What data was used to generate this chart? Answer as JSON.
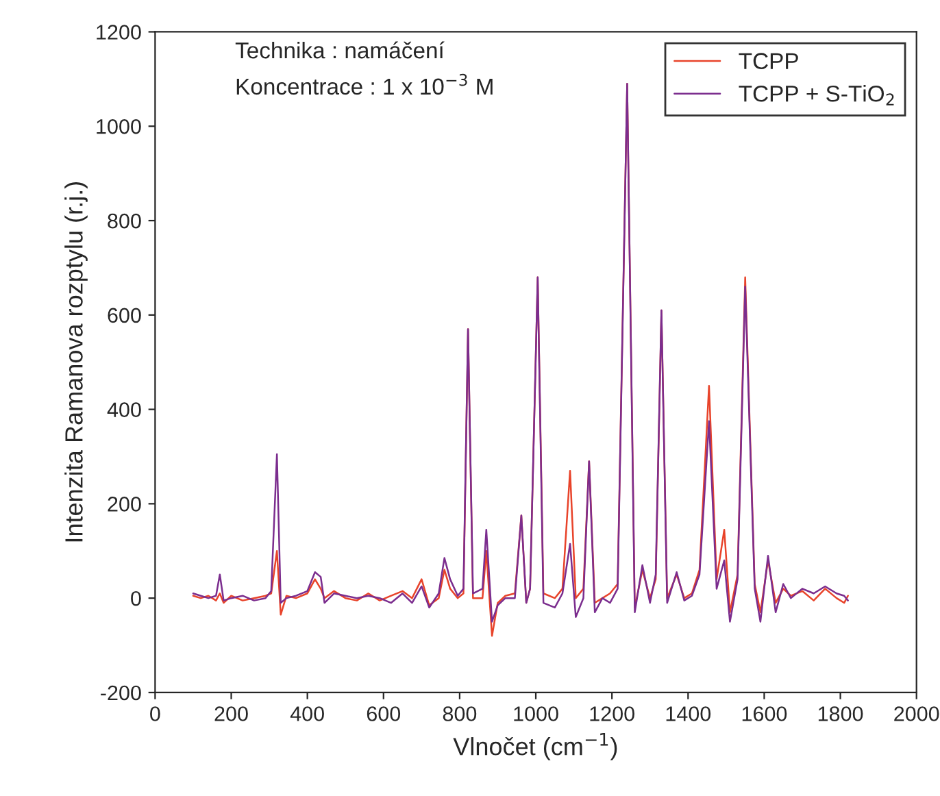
{
  "chart_data": {
    "type": "line",
    "xlabel": "Vlnočet (cm$^{−1}$)",
    "ylabel": "Intenzita Ramanova rozptylu (r.j.)",
    "annotations": [
      "Technika : namáčení",
      "Koncentrace : 1 x 10$^{−3}$ M"
    ],
    "x": [
      100,
      120,
      140,
      160,
      170,
      180,
      200,
      230,
      260,
      290,
      305,
      320,
      330,
      345,
      370,
      400,
      420,
      435,
      445,
      470,
      500,
      530,
      560,
      590,
      620,
      650,
      675,
      700,
      720,
      745,
      760,
      775,
      795,
      810,
      822,
      835,
      860,
      870,
      885,
      900,
      920,
      945,
      962,
      975,
      985,
      1005,
      1020,
      1050,
      1070,
      1090,
      1105,
      1125,
      1140,
      1155,
      1175,
      1195,
      1215,
      1240,
      1260,
      1280,
      1300,
      1315,
      1330,
      1345,
      1370,
      1390,
      1410,
      1430,
      1455,
      1475,
      1495,
      1510,
      1530,
      1550,
      1575,
      1590,
      1610,
      1630,
      1650,
      1670,
      1700,
      1730,
      1760,
      1790,
      1810,
      1820
    ],
    "series": [
      {
        "name": "TCPP",
        "color": "#e8432a",
        "values": [
          5,
          0,
          5,
          -5,
          10,
          -10,
          5,
          -5,
          0,
          5,
          10,
          100,
          -35,
          5,
          0,
          10,
          40,
          20,
          0,
          15,
          0,
          -5,
          10,
          -5,
          5,
          15,
          0,
          40,
          -15,
          0,
          60,
          20,
          0,
          10,
          570,
          0,
          0,
          100,
          -80,
          -10,
          5,
          10,
          175,
          -10,
          20,
          680,
          10,
          0,
          20,
          270,
          0,
          20,
          290,
          -10,
          0,
          10,
          30,
          1090,
          -20,
          60,
          0,
          40,
          610,
          0,
          50,
          0,
          10,
          60,
          450,
          40,
          145,
          -30,
          50,
          680,
          30,
          -30,
          80,
          -10,
          20,
          5,
          15,
          -5,
          20,
          0,
          -10,
          5
        ]
      },
      {
        "name": "TCPP + S-TiO$_{2}$",
        "color": "#7b2d8e",
        "values": [
          10,
          5,
          0,
          5,
          50,
          -5,
          0,
          5,
          -5,
          0,
          15,
          305,
          -10,
          0,
          5,
          15,
          55,
          45,
          -10,
          10,
          5,
          0,
          5,
          0,
          -10,
          10,
          -10,
          25,
          -20,
          10,
          85,
          40,
          5,
          20,
          570,
          10,
          20,
          145,
          -50,
          -15,
          0,
          0,
          175,
          -10,
          20,
          680,
          -10,
          -20,
          10,
          115,
          -40,
          0,
          290,
          -30,
          0,
          -10,
          20,
          1090,
          -30,
          70,
          -10,
          50,
          610,
          -10,
          55,
          -5,
          5,
          50,
          375,
          20,
          80,
          -50,
          40,
          660,
          20,
          -50,
          90,
          -30,
          30,
          0,
          20,
          10,
          25,
          10,
          5,
          -5
        ]
      }
    ],
    "xlim": [
      0,
      2000
    ],
    "xticks": [
      0,
      200,
      400,
      600,
      800,
      1000,
      1200,
      1400,
      1600,
      1800,
      2000
    ],
    "ylim": [
      -200,
      1200
    ],
    "yticks": [
      -200,
      0,
      200,
      400,
      600,
      800,
      1000,
      1200
    ],
    "grid": false,
    "legend": "top right",
    "marker": "none",
    "line_style": "solid"
  }
}
